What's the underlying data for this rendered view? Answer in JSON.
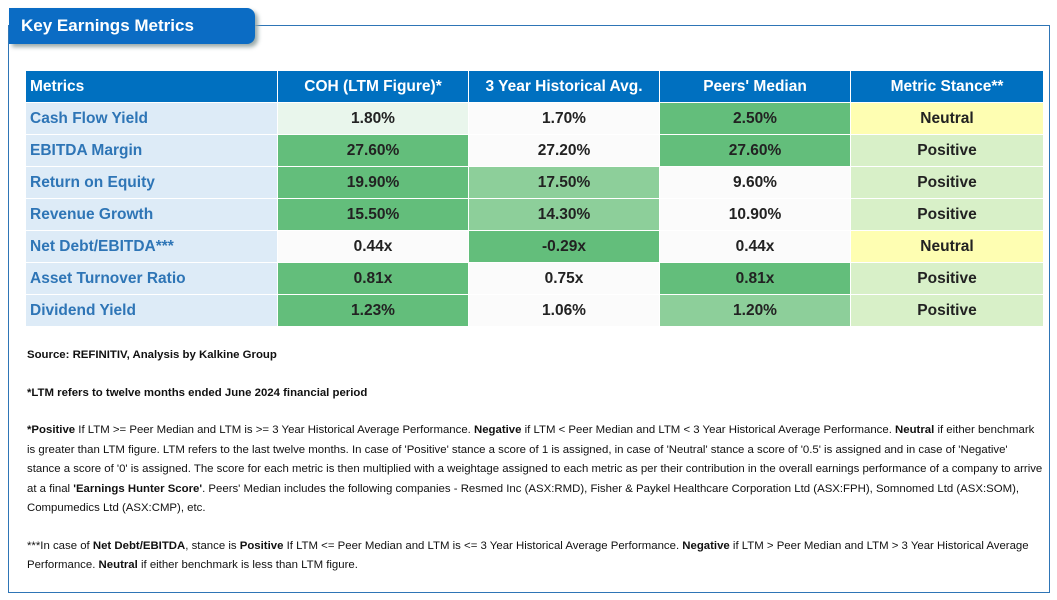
{
  "header": {
    "title": "Key Earnings Metrics"
  },
  "table": {
    "columns": [
      "Metrics",
      "COH (LTM Figure)*",
      "3 Year Historical Avg.",
      "Peers' Median",
      "Metric Stance**"
    ],
    "rows": [
      [
        "Cash Flow Yield",
        "1.80%",
        "1.70%",
        "2.50%",
        "Neutral"
      ],
      [
        "EBITDA Margin",
        "27.60%",
        "27.20%",
        "27.60%",
        "Positive"
      ],
      [
        "Return on Equity",
        "19.90%",
        "17.50%",
        "9.60%",
        "Positive"
      ],
      [
        "Revenue Growth",
        "15.50%",
        "14.30%",
        "10.90%",
        "Positive"
      ],
      [
        "Net Debt/EBITDA***",
        "0.44x",
        "-0.29x",
        "0.44x",
        "Neutral"
      ],
      [
        "Asset Turnover Ratio",
        "0.81x",
        "0.75x",
        "0.81x",
        "Positive"
      ],
      [
        "Dividend Yield",
        "1.23%",
        "1.06%",
        "1.20%",
        "Positive"
      ]
    ]
  },
  "notes": {
    "source": "Source: REFINITIV, Analysis by Kalkine Group",
    "ltm": "*LTM refers to twelve months ended June 2024 financial period",
    "stance": [
      "*Positive",
      " If LTM >= Peer Median and LTM is >= 3 Year Historical Average Performance. ",
      "Negative",
      " if LTM < Peer Median and LTM < 3 Year Historical Average Performance. ",
      "Neutral",
      " if either benchmark is greater than LTM figure. LTM refers to the last twelve months. In case of 'Positive' stance a score of 1 is assigned, in case of 'Neutral' stance a score of '0.5' is assigned and in case of 'Negative' stance a score of '0' is assigned. The score for each metric is then multiplied with a weightage assigned to each metric as per their contribution in the overall earnings performance of a company to arrive at a final ",
      "'Earnings Hunter Score'",
      ". Peers' Median includes the following companies - Resmed Inc (ASX:RMD), Fisher & Paykel Healthcare Corporation Ltd (ASX:FPH), Somnomed Ltd (ASX:SOM), Compumedics Ltd (ASX:CMP), etc."
    ],
    "net_debt": [
      "***In case of ",
      "Net Debt/EBITDA",
      ", stance is ",
      "Positive",
      " If LTM <= Peer Median and LTM is <= 3 Year Historical Average Performance. ",
      "Negative",
      " if LTM > Peer Median and LTM > 3 Year Historical Average Performance. ",
      "Neutral",
      " if either benchmark is less than LTM figure."
    ]
  }
}
